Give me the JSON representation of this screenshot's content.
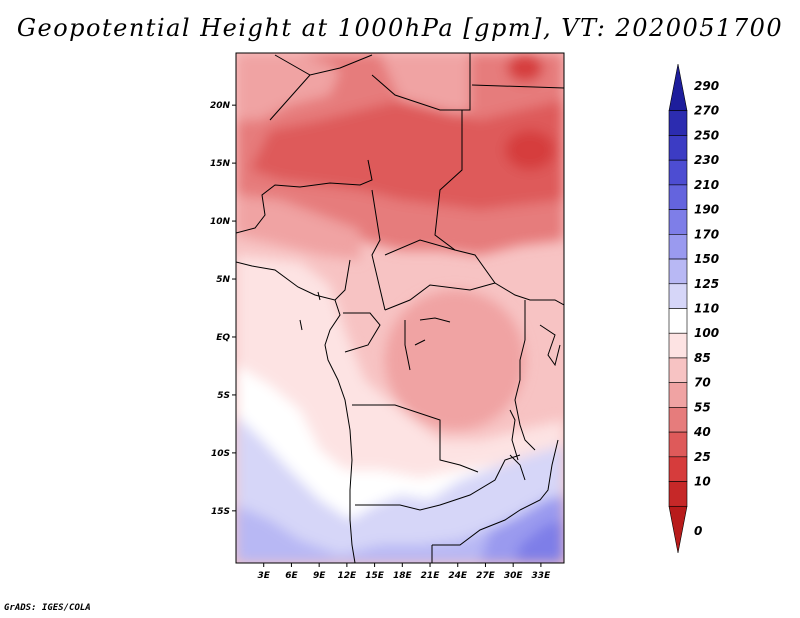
{
  "title": "Geopotential Height at 1000hPa [gpm], VT: 2020051700",
  "credit": "GrADS: IGES/COLA",
  "map": {
    "lat_range": [
      -19.5,
      24.5
    ],
    "lon_range": [
      0,
      35.5
    ],
    "lat_ticks": [
      {
        "value": 20,
        "label": "20N"
      },
      {
        "value": 15,
        "label": "15N"
      },
      {
        "value": 10,
        "label": "10N"
      },
      {
        "value": 5,
        "label": "5N"
      },
      {
        "value": 0,
        "label": "EQ"
      },
      {
        "value": -5,
        "label": "5S"
      },
      {
        "value": -10,
        "label": "10S"
      },
      {
        "value": -15,
        "label": "15S"
      }
    ],
    "lon_ticks": [
      {
        "value": 3,
        "label": "3E"
      },
      {
        "value": 6,
        "label": "6E"
      },
      {
        "value": 9,
        "label": "9E"
      },
      {
        "value": 12,
        "label": "12E"
      },
      {
        "value": 15,
        "label": "15E"
      },
      {
        "value": 18,
        "label": "18E"
      },
      {
        "value": 21,
        "label": "21E"
      },
      {
        "value": 24,
        "label": "24E"
      },
      {
        "value": 27,
        "label": "27E"
      },
      {
        "value": 30,
        "label": "30E"
      },
      {
        "value": 33,
        "label": "33E"
      }
    ]
  },
  "colorbar": {
    "labels": [
      "290",
      "270",
      "250",
      "230",
      "210",
      "190",
      "170",
      "150",
      "125",
      "110",
      "100",
      "85",
      "70",
      "55",
      "40",
      "25",
      "10",
      "0"
    ],
    "colors": [
      "#1e1e9c",
      "#2c2cb0",
      "#3c3cc4",
      "#4d4dd2",
      "#6464de",
      "#7e7ee8",
      "#9a9aef",
      "#b8b8f4",
      "#d6d6f8",
      "#ffffff",
      "#fde3e3",
      "#f7c3c3",
      "#f0a3a3",
      "#e67c7c",
      "#de5a5a",
      "#d63c3c",
      "#c62828",
      "#b81b1b"
    ]
  }
}
